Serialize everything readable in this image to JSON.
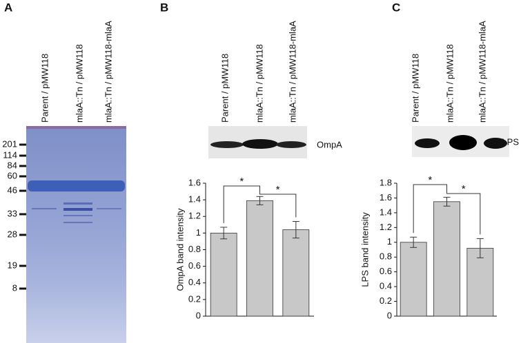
{
  "panel_labels": [
    "A",
    "B",
    "C"
  ],
  "lanes": [
    "Parent / pMW118",
    "mlaA::Tn / pMW118",
    "mlaA::Tn / pMW118-mlaA"
  ],
  "gel_markers": [
    "201",
    "114",
    "84",
    "60",
    "46",
    "33",
    "28",
    "19",
    "8"
  ],
  "blot_labels": [
    "OmpA",
    "LPS"
  ],
  "chart_data": [
    {
      "type": "bar",
      "y_label": "OmpA band intensity",
      "categories": [
        null,
        null,
        null
      ],
      "values": [
        1.0,
        1.39,
        1.04
      ],
      "errors": [
        0.07,
        0.05,
        0.1
      ],
      "color": "#c8c8c8",
      "ylim": [
        0,
        1.6
      ],
      "yticks": [
        0,
        0.2,
        0.4,
        0.6,
        0.8,
        1,
        1.2,
        1.4,
        1.6
      ],
      "annotations": [
        "*",
        "*"
      ]
    },
    {
      "type": "bar",
      "y_label": "LPS band intensity",
      "categories": [
        null,
        null,
        null
      ],
      "values": [
        1.0,
        1.55,
        0.92
      ],
      "errors": [
        0.07,
        0.06,
        0.13
      ],
      "color": "#c8c8c8",
      "ylim": [
        0,
        1.8
      ],
      "yticks": [
        0,
        0.2,
        0.4,
        0.6,
        0.8,
        1,
        1.2,
        1.4,
        1.6,
        1.8
      ],
      "annotations": [
        "*",
        "*"
      ]
    }
  ]
}
